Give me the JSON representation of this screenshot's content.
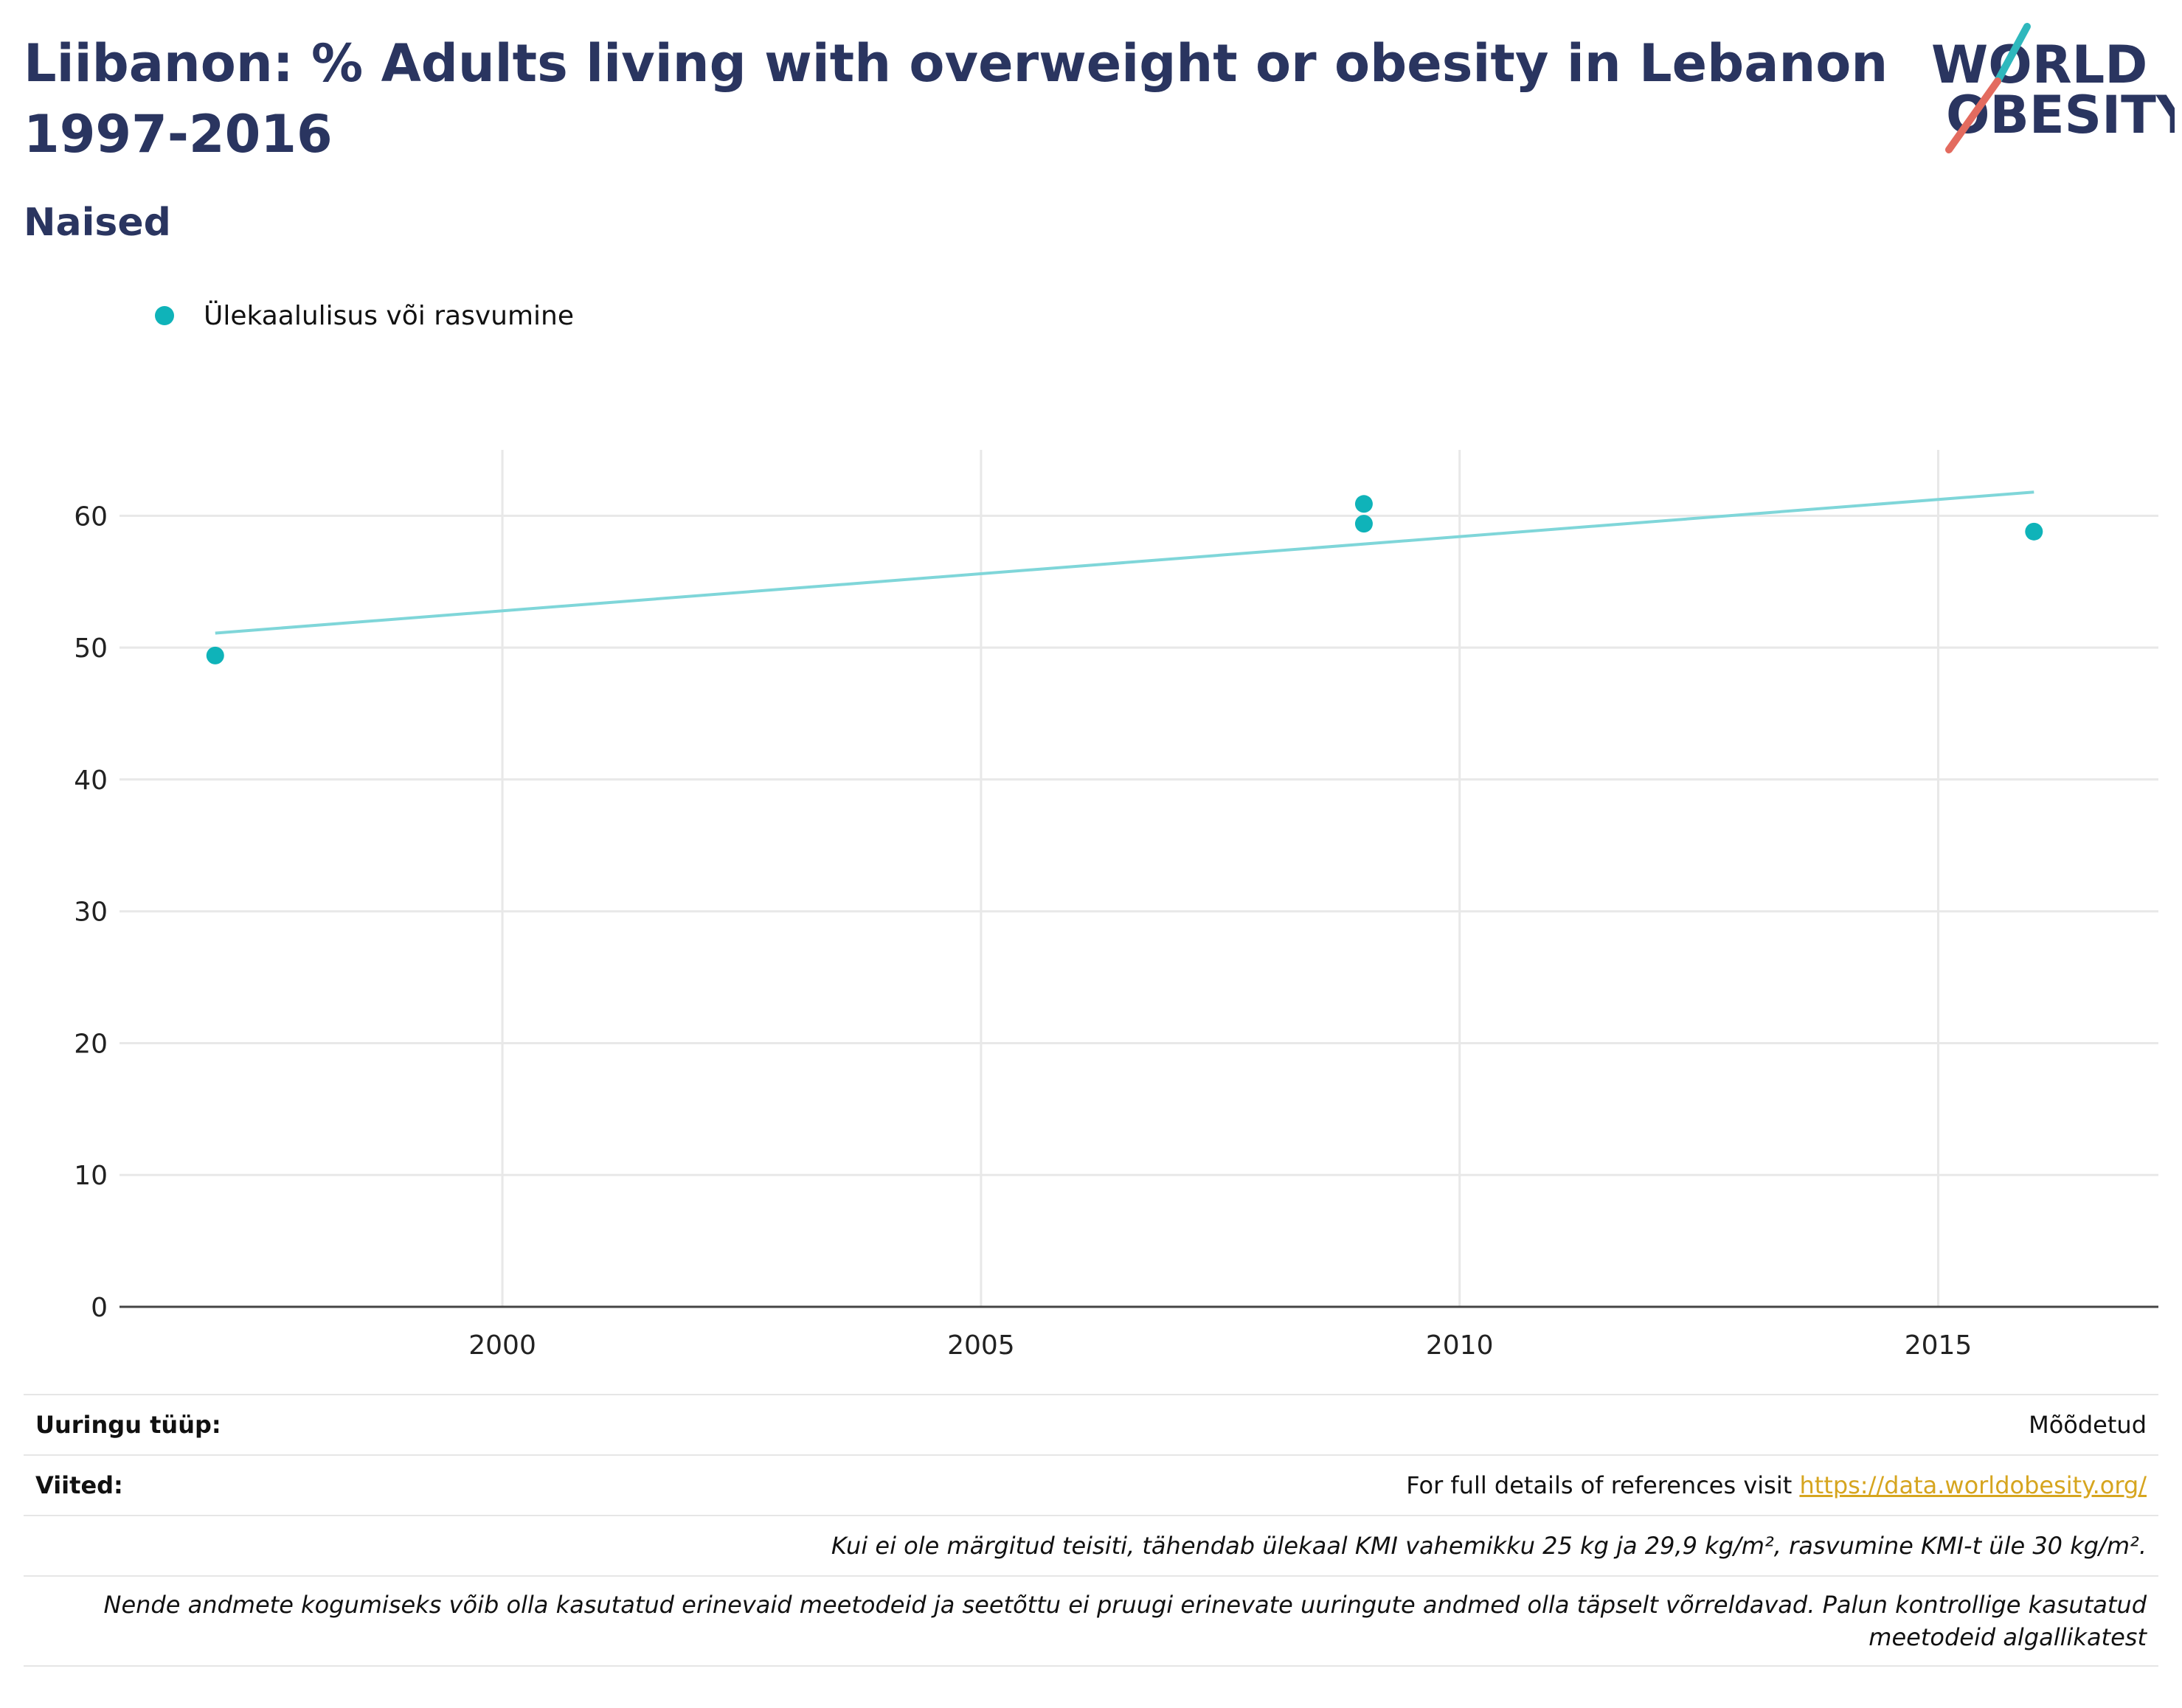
{
  "title": "Liibanon: % Adults living with overweight or obesity in Lebanon 1997-2016",
  "subtitle": "Naised",
  "logo": {
    "line1": "WORLD",
    "line2": "OBESITY"
  },
  "colors": {
    "series": "#0fb3b9",
    "trend": "#7fd6d9",
    "title": "#2a3560",
    "link": "#d6a51f"
  },
  "chart_data": {
    "type": "scatter",
    "title": "Liibanon: % Adults living with overweight or obesity in Lebanon 1997-2016",
    "xlabel": "",
    "ylabel": "",
    "xlim": [
      1996,
      2017.3
    ],
    "ylim": [
      0,
      65
    ],
    "xticks": [
      2000,
      2005,
      2010,
      2015
    ],
    "yticks": [
      0,
      10,
      20,
      30,
      40,
      50,
      60
    ],
    "grid": true,
    "legend": "top-left",
    "series": [
      {
        "name": "Ülekaalulisus või rasvumine",
        "points": [
          {
            "x": 1997,
            "y": 49.4
          },
          {
            "x": 2009,
            "y": 60.9
          },
          {
            "x": 2009,
            "y": 59.4
          },
          {
            "x": 2016,
            "y": 58.8
          }
        ]
      }
    ],
    "trendline": {
      "x": [
        1997,
        2016
      ],
      "y": [
        51.1,
        61.8
      ]
    }
  },
  "info": {
    "survey_type_label": "Uuringu tüüp:",
    "survey_type_value": "Mõõdetud",
    "references_label": "Viited:",
    "references_text": "For full details of references visit ",
    "references_link": "https://data.worldobesity.org/",
    "note1": "Kui ei ole märgitud teisiti, tähendab ülekaal KMI vahemikku 25 kg ja 29,9 kg/m², rasvumine KMI-t üle 30 kg/m².",
    "note2": "Nende andmete kogumiseks võib olla kasutatud erinevaid meetodeid ja seetõttu ei pruugi erinevate uuringute andmed olla täpselt võrreldavad. Palun kontrollige kasutatud meetodeid algallikatest"
  }
}
